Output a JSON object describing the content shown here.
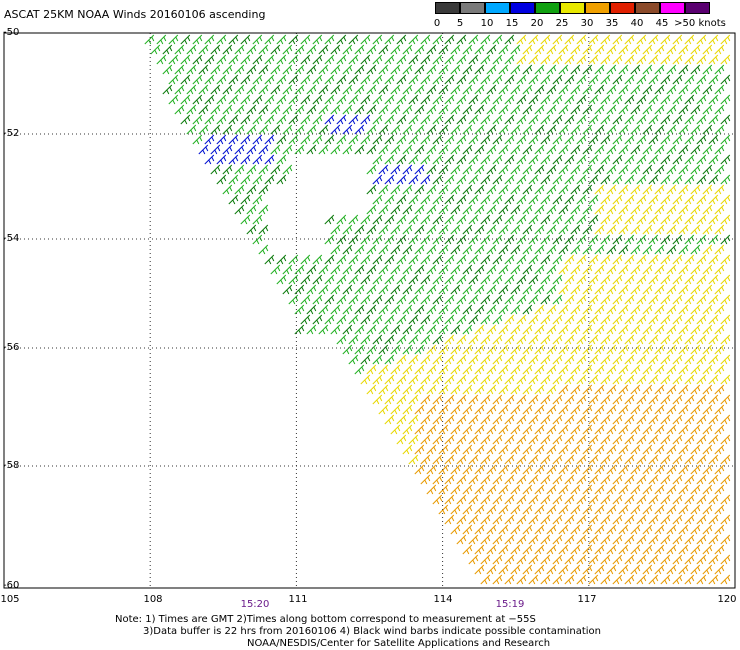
{
  "title": "ASCAT 25KM NOAA Winds 20160106 ascending",
  "legend": {
    "labels": [
      "0",
      "5",
      "10",
      "15",
      "20",
      "25",
      "30",
      "35",
      "40",
      "45",
      ">50 knots"
    ],
    "colors": [
      "#3a3a3a",
      "#7a7a7a",
      "#00a8ff",
      "#0000e0",
      "#10a010",
      "#e8e800",
      "#f0a000",
      "#e02000",
      "#8b4a2a",
      "#ff00ff",
      "#5a0070"
    ]
  },
  "y_axis": {
    "labels": [
      "-50",
      "-52",
      "-54",
      "-56",
      "-58",
      "-60"
    ]
  },
  "x_axis": {
    "labels": [
      "105",
      "108",
      "111",
      "114",
      "117",
      "120"
    ]
  },
  "times": [
    "15:20",
    "15:19"
  ],
  "notes": {
    "line1": "Note: 1) Times are GMT 2)Times along bottom correspond to measurement at −55S",
    "line2": "3)Data buffer is 22 hrs from 20160106 4) Black wind barbs indicate possible contamination",
    "line3": "NOAA/NESDIS/Center for Satellite Applications and Research"
  },
  "map": {
    "lon_range": [
      105,
      120
    ],
    "lat_range": [
      -60,
      -50
    ],
    "grid_lons": [
      108,
      111,
      114,
      117
    ],
    "grid_lats": [
      -52,
      -54,
      -56,
      -58
    ],
    "speed_colors": {
      "blue": "#0010d0",
      "green_light": "#22b022",
      "green_dark": "#0a7a0a",
      "yellow": "#e8d800",
      "orange": "#e89a00",
      "red_orange": "#d04010"
    },
    "wind_direction_deg": 250
  }
}
